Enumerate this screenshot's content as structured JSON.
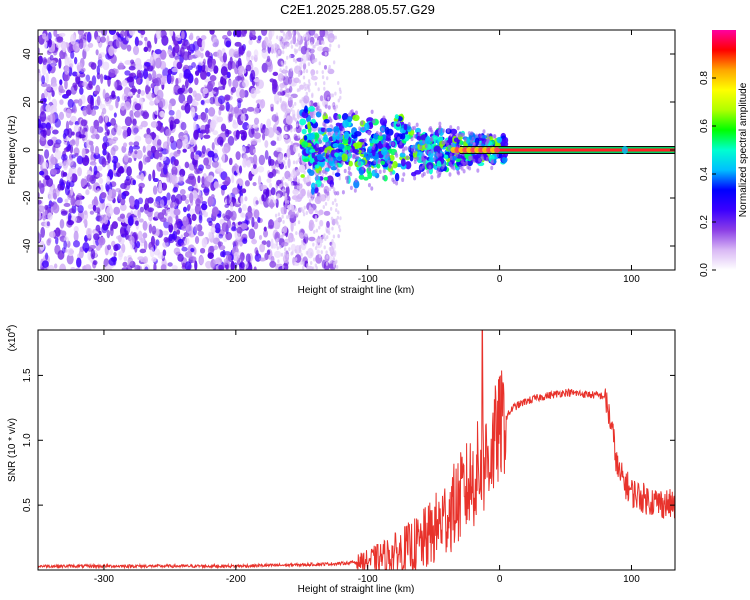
{
  "page_title": "C2E1.2025.288.05.57.G29",
  "chart_data": [
    {
      "type": "heatmap",
      "xlabel": "Height of straight line (km)",
      "ylabel": "Frequency (Hz)",
      "xlim": [
        -350,
        133
      ],
      "ylim": [
        -50,
        50
      ],
      "xticks": [
        -300,
        -200,
        -100,
        0,
        100
      ],
      "yticks": [
        -40,
        -20,
        0,
        20,
        40
      ],
      "colorbar": {
        "label": "Normalized spectral amplitude",
        "range": [
          0.0,
          1.0
        ],
        "ticks": [
          0.0,
          0.2,
          0.4,
          0.6,
          0.8
        ],
        "colormap": [
          "#ffffff",
          "#d9b8f5",
          "#8b3ee6",
          "#3b00ff",
          "#0000ff",
          "#00bfff",
          "#00ffd0",
          "#00ff00",
          "#b0ff00",
          "#ffff00",
          "#ffa500",
          "#ff0000",
          "#ff00a0"
        ]
      },
      "features": {
        "scatter_region_x": [
          -350,
          -130
        ],
        "transition_region_x": [
          -150,
          5
        ],
        "steady_line": {
          "x": [
            -30,
            133
          ],
          "frequency": 0
        }
      },
      "grid": false
    },
    {
      "type": "line",
      "xlabel": "Height of straight line (km)",
      "ylabel": "SNR (10 * v/v)",
      "scale_label": "(x10",
      "scale_exp": "4",
      "scale_suffix": ")",
      "xlim": [
        -350,
        133
      ],
      "ylim": [
        0,
        1.85
      ],
      "xticks": [
        -300,
        -200,
        -100,
        0,
        100
      ],
      "yticks": [
        "0.5",
        "1.0",
        "1.5"
      ],
      "ytick_values": [
        0.5,
        1.0,
        1.5
      ],
      "color": "#e8322b",
      "anchors": {
        "x": [
          -350,
          -300,
          -200,
          -150,
          -120,
          -100,
          -80,
          -60,
          -50,
          -40,
          -30,
          -20,
          -10,
          -5,
          0,
          10,
          20,
          30,
          40,
          50,
          60,
          70,
          80,
          85,
          90,
          100,
          110,
          120,
          133
        ],
        "y": [
          0.03,
          0.03,
          0.03,
          0.04,
          0.05,
          0.07,
          0.12,
          0.2,
          0.3,
          0.42,
          0.55,
          0.7,
          0.85,
          0.95,
          1.1,
          1.25,
          1.3,
          1.33,
          1.35,
          1.37,
          1.36,
          1.35,
          1.34,
          1.1,
          0.75,
          0.6,
          0.55,
          0.52,
          0.5
        ]
      },
      "spike": {
        "x": -13,
        "y": 1.85
      },
      "grid": false
    }
  ]
}
